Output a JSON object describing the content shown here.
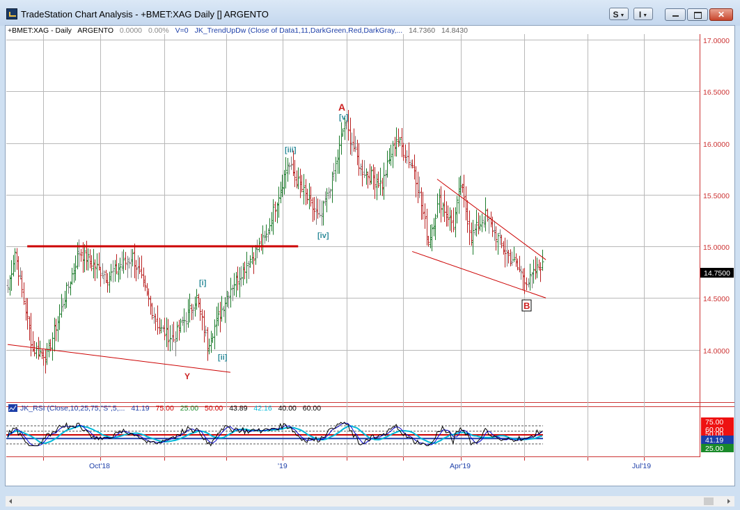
{
  "window": {
    "title": "TradeStation Chart Analysis - +BMET:XAG Daily [] ARGENTO",
    "btn_s": "S",
    "btn_i": "I"
  },
  "price_pane": {
    "header": {
      "symbol": "+BMET:XAG - Daily",
      "name": "ARGENTO",
      "change": "0.0000",
      "change_pct": "0.00%",
      "volume": "V=0",
      "indicator": "JK_TrendUpDw (Close of Data1,11,DarkGreen,Red,DarkGray,...",
      "value1": "14.7360",
      "value2": "14.8430"
    },
    "y_ticks": [
      "17.0000",
      "16.5000",
      "16.0000",
      "15.5000",
      "15.0000",
      "14.5000",
      "14.0000"
    ],
    "last_price": "14.7500",
    "labels": {
      "A": "A",
      "B": "B",
      "Y": "Y",
      "i": "[i]",
      "ii": "[ii]",
      "iii": "[iii]",
      "iv": "[iv]",
      "v": "[v]"
    }
  },
  "rsi_pane": {
    "header": {
      "name": "JK_RSI (Close,10,25,75,\"S\",5,...",
      "v1": "41.19",
      "v2": "75.00",
      "v3": "25.00",
      "v4": "50.00",
      "v5": "43.89",
      "v6": "42.16",
      "v7": "40.00",
      "v8": "60.00"
    },
    "axis_labels": [
      "75.00",
      "60.00",
      "50.00",
      "41.19",
      "25.00"
    ]
  },
  "x_axis": {
    "labels": [
      "Oct'18",
      "'19",
      "Apr'19",
      "Jul'19"
    ]
  },
  "chart_data": {
    "type": "line",
    "ylim": [
      13.6,
      17.05
    ],
    "bars_start": 14.6,
    "pivots": [
      [
        0,
        14.6
      ],
      [
        4,
        14.95
      ],
      [
        14,
        14.0
      ],
      [
        22,
        13.95
      ],
      [
        40,
        14.95
      ],
      [
        56,
        14.7
      ],
      [
        70,
        14.9
      ],
      [
        85,
        14.2
      ],
      [
        93,
        14.1
      ],
      [
        106,
        14.5
      ],
      [
        112,
        14.05
      ],
      [
        125,
        14.6
      ],
      [
        145,
        15.1
      ],
      [
        157,
        15.8
      ],
      [
        165,
        15.55
      ],
      [
        175,
        15.25
      ],
      [
        183,
        15.7
      ],
      [
        189,
        16.2
      ],
      [
        198,
        15.75
      ],
      [
        210,
        15.6
      ],
      [
        218,
        16.05
      ],
      [
        228,
        15.75
      ],
      [
        236,
        15.05
      ],
      [
        242,
        15.45
      ],
      [
        250,
        15.2
      ],
      [
        254,
        15.6
      ],
      [
        260,
        15.1
      ],
      [
        268,
        15.3
      ],
      [
        279,
        14.95
      ],
      [
        292,
        14.65
      ],
      [
        300,
        14.85
      ]
    ],
    "trendlines": [
      {
        "name": "support-2018",
        "x1": 0,
        "y1": 14.05,
        "x2": 125,
        "y2": 13.78,
        "color": "#cc0000"
      },
      {
        "name": "resistance-15",
        "x1": 11,
        "y1": 15.0,
        "x2": 163,
        "y2": 15.0,
        "color": "#cc0000"
      },
      {
        "name": "wedge-upper",
        "x1": 241,
        "y1": 15.65,
        "x2": 302,
        "y2": 14.87,
        "color": "#cc0000"
      },
      {
        "name": "wedge-lower",
        "x1": 227,
        "y1": 14.95,
        "x2": 302,
        "y2": 14.5,
        "color": "#cc0000"
      }
    ],
    "rsi": {
      "ylim": [
        0,
        100
      ],
      "levels": [
        75,
        60,
        50,
        40,
        25
      ],
      "rsi_last": 41.19,
      "series": [
        {
          "name": "rsi",
          "color": "#000000"
        },
        {
          "name": "signal",
          "color": "#0000cc"
        },
        {
          "name": "trend",
          "color": "#00b8d8"
        }
      ]
    },
    "colors": {
      "up": "#1a7a2a",
      "down": "#b81e1e",
      "neutral": "#808080",
      "accent": "#cc0000",
      "label": "#2e8b9a"
    }
  }
}
